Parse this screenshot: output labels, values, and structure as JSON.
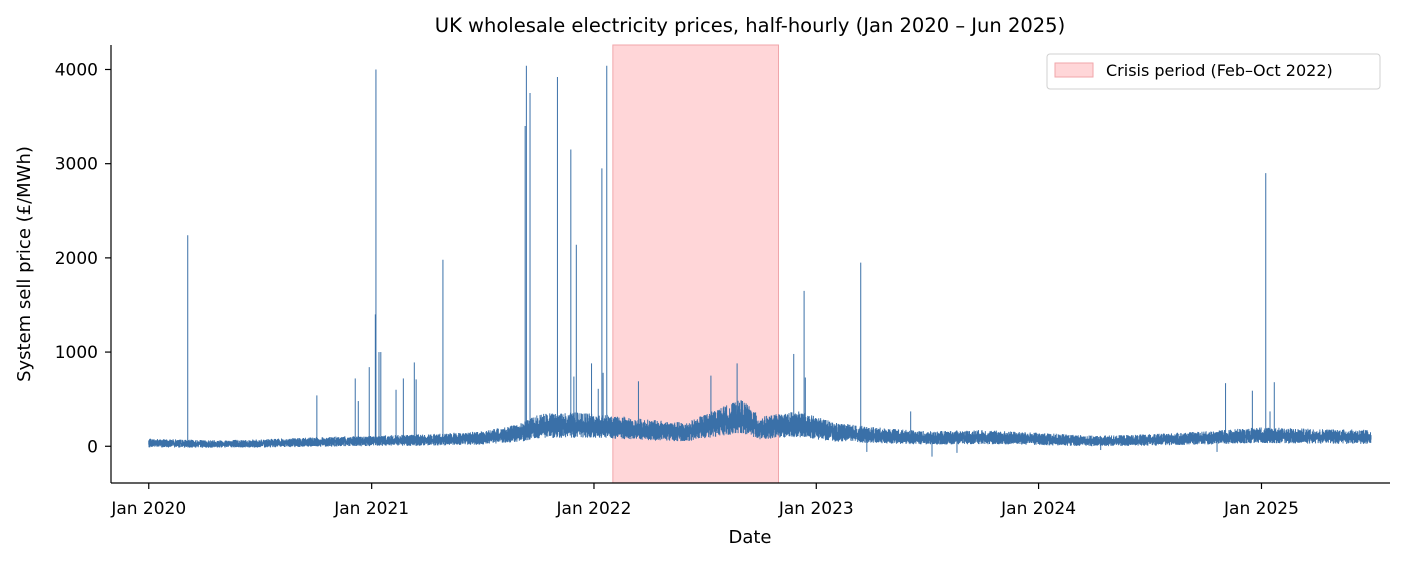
{
  "chart_data": {
    "type": "line",
    "title": "UK wholesale electricity prices, half-hourly (Jan 2020 – Jun 2025)",
    "xlabel": "Date",
    "ylabel": "System sell price (£/MWh)",
    "xlim": [
      "2019-10-31",
      "2025-07-31"
    ],
    "ylim": [
      -390,
      4260
    ],
    "grid": false,
    "legend_position": "top-right",
    "x_ticks": [
      {
        "date": "2020-01-01",
        "label": "Jan 2020"
      },
      {
        "date": "2021-01-01",
        "label": "Jan 2021"
      },
      {
        "date": "2022-01-01",
        "label": "Jan 2022"
      },
      {
        "date": "2023-01-01",
        "label": "Jan 2023"
      },
      {
        "date": "2024-01-01",
        "label": "Jan 2024"
      },
      {
        "date": "2025-01-01",
        "label": "Jan 2025"
      }
    ],
    "y_ticks": [
      0,
      1000,
      2000,
      3000,
      4000
    ],
    "shaded_region": {
      "label": "Crisis period (Feb–Oct 2022)",
      "start": "2022-02-01",
      "end": "2022-10-31",
      "color": "#ffd6d8",
      "edge_color": "#f0a6aa"
    },
    "series": [
      {
        "color": "#3a70a8",
        "baseline": [
          [
            "2020-01-01",
            30
          ],
          [
            "2020-04-01",
            20
          ],
          [
            "2020-07-01",
            25
          ],
          [
            "2020-10-01",
            40
          ],
          [
            "2021-01-01",
            50
          ],
          [
            "2021-04-01",
            60
          ],
          [
            "2021-07-01",
            80
          ],
          [
            "2021-09-01",
            130
          ],
          [
            "2021-10-01",
            200
          ],
          [
            "2021-12-01",
            210
          ],
          [
            "2022-02-01",
            190
          ],
          [
            "2022-04-01",
            160
          ],
          [
            "2022-06-01",
            140
          ],
          [
            "2022-08-01",
            250
          ],
          [
            "2022-09-01",
            300
          ],
          [
            "2022-10-01",
            180
          ],
          [
            "2022-12-01",
            220
          ],
          [
            "2023-02-01",
            140
          ],
          [
            "2023-04-01",
            110
          ],
          [
            "2023-07-01",
            80
          ],
          [
            "2023-10-01",
            90
          ],
          [
            "2024-01-01",
            70
          ],
          [
            "2024-04-01",
            50
          ],
          [
            "2024-07-01",
            60
          ],
          [
            "2024-10-01",
            80
          ],
          [
            "2025-01-01",
            110
          ],
          [
            "2025-03-01",
            100
          ],
          [
            "2025-06-30",
            90
          ]
        ],
        "spikes": [
          [
            "2020-03-05",
            2240
          ],
          [
            "2020-10-03",
            540
          ],
          [
            "2020-12-05",
            720
          ],
          [
            "2020-12-10",
            480
          ],
          [
            "2020-12-28",
            840
          ],
          [
            "2021-01-07",
            1400
          ],
          [
            "2021-01-08",
            4000
          ],
          [
            "2021-01-13",
            1000
          ],
          [
            "2021-01-16",
            1000
          ],
          [
            "2021-02-10",
            600
          ],
          [
            "2021-02-22",
            720
          ],
          [
            "2021-03-12",
            890
          ],
          [
            "2021-03-15",
            710
          ],
          [
            "2021-04-28",
            1980
          ],
          [
            "2021-09-10",
            3400
          ],
          [
            "2021-09-12",
            4040
          ],
          [
            "2021-09-18",
            3750
          ],
          [
            "2021-11-02",
            3920
          ],
          [
            "2021-11-24",
            3150
          ],
          [
            "2021-11-29",
            740
          ],
          [
            "2021-12-03",
            2140
          ],
          [
            "2021-12-28",
            880
          ],
          [
            "2022-01-08",
            610
          ],
          [
            "2022-01-14",
            2950
          ],
          [
            "2022-01-16",
            780
          ],
          [
            "2022-01-22",
            4040
          ],
          [
            "2022-03-15",
            690
          ],
          [
            "2022-07-12",
            750
          ],
          [
            "2022-08-24",
            880
          ],
          [
            "2022-11-25",
            980
          ],
          [
            "2022-12-12",
            1650
          ],
          [
            "2022-12-14",
            730
          ],
          [
            "2023-03-15",
            1950
          ],
          [
            "2023-06-05",
            370
          ],
          [
            "2024-11-03",
            670
          ],
          [
            "2024-12-17",
            590
          ],
          [
            "2025-01-08",
            2900
          ],
          [
            "2025-01-15",
            370
          ],
          [
            "2025-01-22",
            680
          ]
        ],
        "dips": [
          [
            "2023-03-25",
            -60
          ],
          [
            "2023-07-10",
            -110
          ],
          [
            "2023-08-20",
            -70
          ],
          [
            "2024-04-12",
            -40
          ],
          [
            "2024-10-20",
            -60
          ]
        ]
      }
    ]
  }
}
